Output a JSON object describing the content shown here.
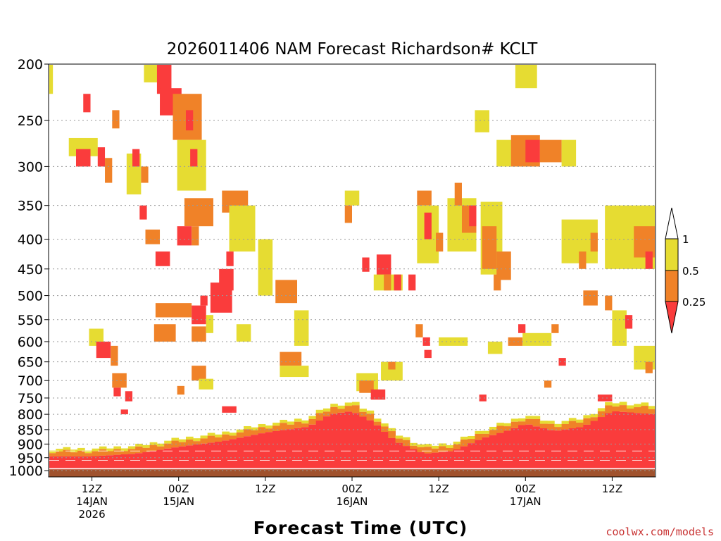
{
  "chart_data": {
    "type": "heatmap",
    "title": "2026011406 NAM Forecast Richardson# KCLT",
    "xlabel": "Forecast Time (UTC)",
    "ylabel": "",
    "credit": "coolwx.com/models",
    "y_levels": [
      "200",
      "250",
      "300",
      "350",
      "400",
      "450",
      "500",
      "550",
      "600",
      "650",
      "700",
      "750",
      "800",
      "850",
      "900",
      "950",
      "1000"
    ],
    "y_range": [
      200,
      1025
    ],
    "x_ticks": [
      {
        "hour": 6,
        "lines": [
          "12Z",
          "14JAN",
          "2026"
        ]
      },
      {
        "hour": 18,
        "lines": [
          "00Z",
          "15JAN"
        ]
      },
      {
        "hour": 30,
        "lines": [
          "12Z"
        ]
      },
      {
        "hour": 42,
        "lines": [
          "00Z",
          "16JAN"
        ]
      },
      {
        "hour": 54,
        "lines": [
          "12Z"
        ]
      },
      {
        "hour": 66,
        "lines": [
          "00Z",
          "17JAN"
        ]
      },
      {
        "hour": 78,
        "lines": [
          "12Z"
        ]
      }
    ],
    "x_range": [
      0,
      84
    ],
    "legend": {
      "placement": "right",
      "labels": [
        "1",
        "0.5",
        "0.25"
      ],
      "bins": [
        {
          "range": "0.5-1",
          "color": "#e6dc32"
        },
        {
          "range": "0.25-0.5",
          "color": "#f08228"
        },
        {
          "range": "<0.25",
          "color": "#fa3c3c"
        }
      ]
    },
    "colors": {
      "yellow": "#e6dc32",
      "orange": "#f08228",
      "red": "#fa3c3c",
      "ground": "#a0522d",
      "background": "#ffffff"
    },
    "surface_pressure_mb": 995,
    "boundary_layer_top_mb": [
      [
        0,
        945
      ],
      [
        6,
        945
      ],
      [
        12,
        935
      ],
      [
        18,
        910
      ],
      [
        24,
        890
      ],
      [
        30,
        860
      ],
      [
        36,
        840
      ],
      [
        39,
        800
      ],
      [
        42,
        790
      ],
      [
        45,
        825
      ],
      [
        48,
        890
      ],
      [
        52,
        935
      ],
      [
        56,
        925
      ],
      [
        60,
        880
      ],
      [
        64,
        850
      ],
      [
        66,
        830
      ],
      [
        70,
        855
      ],
      [
        74,
        840
      ],
      [
        78,
        790
      ],
      [
        84,
        800
      ]
    ],
    "cells": [
      {
        "t0": 0.0,
        "t1": 0.6,
        "p0": 200,
        "p1": 225,
        "c": "y"
      },
      {
        "t0": 2.8,
        "t1": 6.8,
        "p0": 268,
        "p1": 288,
        "c": "y"
      },
      {
        "t0": 3.8,
        "t1": 5.8,
        "p0": 280,
        "p1": 300,
        "c": "r"
      },
      {
        "t0": 4.8,
        "t1": 5.8,
        "p0": 225,
        "p1": 242,
        "c": "r"
      },
      {
        "t0": 6.8,
        "t1": 7.8,
        "p0": 278,
        "p1": 300,
        "c": "r"
      },
      {
        "t0": 7.8,
        "t1": 8.8,
        "p0": 290,
        "p1": 320,
        "c": "o"
      },
      {
        "t0": 8.8,
        "t1": 9.8,
        "p0": 240,
        "p1": 258,
        "c": "o"
      },
      {
        "t0": 10.8,
        "t1": 12.8,
        "p0": 285,
        "p1": 335,
        "c": "y"
      },
      {
        "t0": 11.6,
        "t1": 12.6,
        "p0": 280,
        "p1": 300,
        "c": "r"
      },
      {
        "t0": 12.8,
        "t1": 13.8,
        "p0": 300,
        "p1": 320,
        "c": "o"
      },
      {
        "t0": 12.6,
        "t1": 13.6,
        "p0": 350,
        "p1": 370,
        "c": "r"
      },
      {
        "t0": 13.4,
        "t1": 15.4,
        "p0": 385,
        "p1": 408,
        "c": "o"
      },
      {
        "t0": 13.2,
        "t1": 15.2,
        "p0": 200,
        "p1": 215,
        "c": "y"
      },
      {
        "t0": 15.0,
        "t1": 17.0,
        "p0": 200,
        "p1": 225,
        "c": "r"
      },
      {
        "t0": 15.4,
        "t1": 18.4,
        "p0": 220,
        "p1": 245,
        "c": "r"
      },
      {
        "t0": 17.2,
        "t1": 21.2,
        "p0": 225,
        "p1": 270,
        "c": "o"
      },
      {
        "t0": 19.0,
        "t1": 20.0,
        "p0": 240,
        "p1": 260,
        "c": "r"
      },
      {
        "t0": 17.8,
        "t1": 21.8,
        "p0": 270,
        "p1": 330,
        "c": "y"
      },
      {
        "t0": 19.6,
        "t1": 20.6,
        "p0": 280,
        "p1": 300,
        "c": "r"
      },
      {
        "t0": 18.8,
        "t1": 22.8,
        "p0": 340,
        "p1": 380,
        "c": "o"
      },
      {
        "t0": 17.8,
        "t1": 19.8,
        "p0": 380,
        "p1": 410,
        "c": "r"
      },
      {
        "t0": 19.8,
        "t1": 20.8,
        "p0": 380,
        "p1": 410,
        "c": "o"
      },
      {
        "t0": 14.8,
        "t1": 16.8,
        "p0": 420,
        "p1": 445,
        "c": "r"
      },
      {
        "t0": 24.0,
        "t1": 27.6,
        "p0": 330,
        "p1": 360,
        "c": "o"
      },
      {
        "t0": 25.0,
        "t1": 28.6,
        "p0": 350,
        "p1": 420,
        "c": "y"
      },
      {
        "t0": 22.4,
        "t1": 25.4,
        "p0": 475,
        "p1": 535,
        "c": "r"
      },
      {
        "t0": 23.6,
        "t1": 25.6,
        "p0": 450,
        "p1": 490,
        "c": "r"
      },
      {
        "t0": 24.6,
        "t1": 25.6,
        "p0": 420,
        "p1": 445,
        "c": "r"
      },
      {
        "t0": 21.0,
        "t1": 22.0,
        "p0": 500,
        "p1": 520,
        "c": "r"
      },
      {
        "t0": 14.8,
        "t1": 19.8,
        "p0": 515,
        "p1": 545,
        "c": "o"
      },
      {
        "t0": 19.8,
        "t1": 21.8,
        "p0": 520,
        "p1": 560,
        "c": "r"
      },
      {
        "t0": 14.6,
        "t1": 17.6,
        "p0": 560,
        "p1": 600,
        "c": "o"
      },
      {
        "t0": 19.8,
        "t1": 21.8,
        "p0": 565,
        "p1": 600,
        "c": "o"
      },
      {
        "t0": 21.8,
        "t1": 22.8,
        "p0": 540,
        "p1": 580,
        "c": "y"
      },
      {
        "t0": 5.6,
        "t1": 7.6,
        "p0": 570,
        "p1": 610,
        "c": "y"
      },
      {
        "t0": 6.6,
        "t1": 8.6,
        "p0": 600,
        "p1": 640,
        "c": "r"
      },
      {
        "t0": 8.6,
        "t1": 9.6,
        "p0": 610,
        "p1": 660,
        "c": "o"
      },
      {
        "t0": 8.8,
        "t1": 10.8,
        "p0": 680,
        "p1": 720,
        "c": "o"
      },
      {
        "t0": 9.0,
        "t1": 10.0,
        "p0": 720,
        "p1": 745,
        "c": "r"
      },
      {
        "t0": 10.6,
        "t1": 11.6,
        "p0": 730,
        "p1": 760,
        "c": "r"
      },
      {
        "t0": 10.0,
        "t1": 11.0,
        "p0": 785,
        "p1": 800,
        "c": "r"
      },
      {
        "t0": 19.8,
        "t1": 21.8,
        "p0": 660,
        "p1": 700,
        "c": "o"
      },
      {
        "t0": 17.8,
        "t1": 18.8,
        "p0": 715,
        "p1": 740,
        "c": "o"
      },
      {
        "t0": 20.8,
        "t1": 22.8,
        "p0": 695,
        "p1": 725,
        "c": "y"
      },
      {
        "t0": 24.0,
        "t1": 26.0,
        "p0": 775,
        "p1": 795,
        "c": "r"
      },
      {
        "t0": 26.0,
        "t1": 28.0,
        "p0": 560,
        "p1": 600,
        "c": "y"
      },
      {
        "t0": 29.0,
        "t1": 31.0,
        "p0": 400,
        "p1": 500,
        "c": "y"
      },
      {
        "t0": 31.4,
        "t1": 34.4,
        "p0": 470,
        "p1": 515,
        "c": "o"
      },
      {
        "t0": 34.0,
        "t1": 36.0,
        "p0": 530,
        "p1": 610,
        "c": "y"
      },
      {
        "t0": 32.0,
        "t1": 35.0,
        "p0": 625,
        "p1": 660,
        "c": "o"
      },
      {
        "t0": 32.0,
        "t1": 36.0,
        "p0": 660,
        "p1": 690,
        "c": "y"
      },
      {
        "t0": 41.0,
        "t1": 43.0,
        "p0": 330,
        "p1": 350,
        "c": "y"
      },
      {
        "t0": 41.0,
        "t1": 42.0,
        "p0": 350,
        "p1": 375,
        "c": "o"
      },
      {
        "t0": 43.4,
        "t1": 44.4,
        "p0": 430,
        "p1": 455,
        "c": "r"
      },
      {
        "t0": 45.4,
        "t1": 47.4,
        "p0": 425,
        "p1": 470,
        "c": "r"
      },
      {
        "t0": 45.0,
        "t1": 49.0,
        "p0": 460,
        "p1": 490,
        "c": "y"
      },
      {
        "t0": 46.4,
        "t1": 47.4,
        "p0": 460,
        "p1": 490,
        "c": "o"
      },
      {
        "t0": 47.8,
        "t1": 48.8,
        "p0": 460,
        "p1": 490,
        "c": "r"
      },
      {
        "t0": 49.8,
        "t1": 50.8,
        "p0": 460,
        "p1": 490,
        "c": "r"
      },
      {
        "t0": 42.6,
        "t1": 45.6,
        "p0": 680,
        "p1": 730,
        "c": "y"
      },
      {
        "t0": 43.0,
        "t1": 45.0,
        "p0": 700,
        "p1": 735,
        "c": "o"
      },
      {
        "t0": 44.6,
        "t1": 46.6,
        "p0": 725,
        "p1": 755,
        "c": "r"
      },
      {
        "t0": 46.0,
        "t1": 49.0,
        "p0": 650,
        "p1": 700,
        "c": "y"
      },
      {
        "t0": 47.0,
        "t1": 48.0,
        "p0": 650,
        "p1": 670,
        "c": "o"
      },
      {
        "t0": 51.0,
        "t1": 53.0,
        "p0": 330,
        "p1": 350,
        "c": "o"
      },
      {
        "t0": 51.0,
        "t1": 54.0,
        "p0": 350,
        "p1": 440,
        "c": "y"
      },
      {
        "t0": 52.0,
        "t1": 53.0,
        "p0": 360,
        "p1": 400,
        "c": "r"
      },
      {
        "t0": 53.6,
        "t1": 54.6,
        "p0": 390,
        "p1": 420,
        "c": "o"
      },
      {
        "t0": 55.2,
        "t1": 59.2,
        "p0": 340,
        "p1": 420,
        "c": "y"
      },
      {
        "t0": 56.2,
        "t1": 57.2,
        "p0": 320,
        "p1": 350,
        "c": "o"
      },
      {
        "t0": 57.2,
        "t1": 59.2,
        "p0": 350,
        "p1": 390,
        "c": "o"
      },
      {
        "t0": 58.2,
        "t1": 59.2,
        "p0": 350,
        "p1": 380,
        "c": "r"
      },
      {
        "t0": 59.8,
        "t1": 62.8,
        "p0": 345,
        "p1": 460,
        "c": "y"
      },
      {
        "t0": 60.0,
        "t1": 62.0,
        "p0": 380,
        "p1": 450,
        "c": "o"
      },
      {
        "t0": 62.0,
        "t1": 64.0,
        "p0": 420,
        "p1": 470,
        "c": "o"
      },
      {
        "t0": 61.6,
        "t1": 62.6,
        "p0": 460,
        "p1": 490,
        "c": "o"
      },
      {
        "t0": 59.0,
        "t1": 61.0,
        "p0": 240,
        "p1": 262,
        "c": "y"
      },
      {
        "t0": 62.0,
        "t1": 66.0,
        "p0": 270,
        "p1": 300,
        "c": "y"
      },
      {
        "t0": 64.0,
        "t1": 68.0,
        "p0": 265,
        "p1": 300,
        "c": "o"
      },
      {
        "t0": 66.0,
        "t1": 68.0,
        "p0": 270,
        "p1": 295,
        "c": "r"
      },
      {
        "t0": 68.0,
        "t1": 71.0,
        "p0": 270,
        "p1": 295,
        "c": "o"
      },
      {
        "t0": 71.0,
        "t1": 73.0,
        "p0": 270,
        "p1": 300,
        "c": "y"
      },
      {
        "t0": 64.6,
        "t1": 67.6,
        "p0": 200,
        "p1": 220,
        "c": "y"
      },
      {
        "t0": 71.0,
        "t1": 76.0,
        "p0": 370,
        "p1": 440,
        "c": "y"
      },
      {
        "t0": 73.4,
        "t1": 74.4,
        "p0": 420,
        "p1": 450,
        "c": "o"
      },
      {
        "t0": 75.0,
        "t1": 76.0,
        "p0": 390,
        "p1": 420,
        "c": "o"
      },
      {
        "t0": 77.0,
        "t1": 84.0,
        "p0": 350,
        "p1": 450,
        "c": "y"
      },
      {
        "t0": 81.0,
        "t1": 84.0,
        "p0": 380,
        "p1": 430,
        "c": "o"
      },
      {
        "t0": 82.6,
        "t1": 83.6,
        "p0": 420,
        "p1": 450,
        "c": "r"
      },
      {
        "t0": 74.0,
        "t1": 76.0,
        "p0": 490,
        "p1": 520,
        "c": "o"
      },
      {
        "t0": 77.0,
        "t1": 78.0,
        "p0": 500,
        "p1": 530,
        "c": "o"
      },
      {
        "t0": 78.0,
        "t1": 80.0,
        "p0": 530,
        "p1": 610,
        "c": "y"
      },
      {
        "t0": 79.8,
        "t1": 80.8,
        "p0": 540,
        "p1": 570,
        "c": "r"
      },
      {
        "t0": 81.0,
        "t1": 84.0,
        "p0": 610,
        "p1": 670,
        "c": "y"
      },
      {
        "t0": 82.6,
        "t1": 83.6,
        "p0": 650,
        "p1": 680,
        "c": "o"
      },
      {
        "t0": 50.8,
        "t1": 51.8,
        "p0": 560,
        "p1": 590,
        "c": "o"
      },
      {
        "t0": 51.8,
        "t1": 52.8,
        "p0": 590,
        "p1": 610,
        "c": "r"
      },
      {
        "t0": 52.0,
        "t1": 53.0,
        "p0": 620,
        "p1": 640,
        "c": "r"
      },
      {
        "t0": 54.0,
        "t1": 58.0,
        "p0": 590,
        "p1": 610,
        "c": "y"
      },
      {
        "t0": 60.8,
        "t1": 62.8,
        "p0": 600,
        "p1": 630,
        "c": "y"
      },
      {
        "t0": 63.6,
        "t1": 65.6,
        "p0": 590,
        "p1": 610,
        "c": "o"
      },
      {
        "t0": 65.6,
        "t1": 69.6,
        "p0": 580,
        "p1": 610,
        "c": "y"
      },
      {
        "t0": 65.0,
        "t1": 66.0,
        "p0": 560,
        "p1": 580,
        "c": "r"
      },
      {
        "t0": 69.6,
        "t1": 70.6,
        "p0": 560,
        "p1": 580,
        "c": "o"
      },
      {
        "t0": 70.6,
        "t1": 71.6,
        "p0": 640,
        "p1": 660,
        "c": "r"
      },
      {
        "t0": 68.6,
        "t1": 69.6,
        "p0": 700,
        "p1": 720,
        "c": "o"
      },
      {
        "t0": 59.6,
        "t1": 60.6,
        "p0": 740,
        "p1": 760,
        "c": "r"
      },
      {
        "t0": 76.0,
        "t1": 78.0,
        "p0": 740,
        "p1": 760,
        "c": "r"
      }
    ]
  }
}
